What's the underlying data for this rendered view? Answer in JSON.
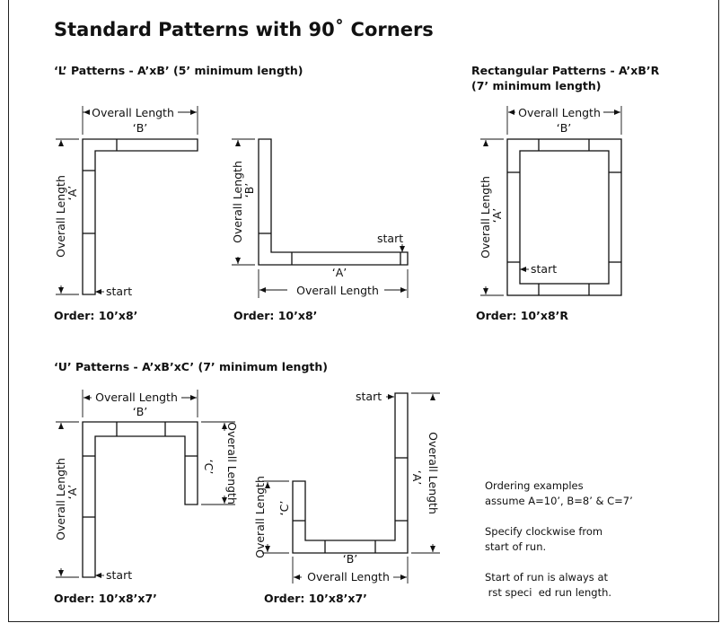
{
  "title": "Standard Patterns with 90˚ Corners",
  "sections": {
    "l_patterns": "‘L’ Patterns - A’xB’ (5’ minimum length)",
    "rect_patterns_line1": "Rectangular Patterns - A’xB’R",
    "rect_patterns_line2": "(7’ minimum length)",
    "u_patterns": "‘U’ Patterns - A’xB’xC’ (7’ minimum length)"
  },
  "labels": {
    "overall_length": "Overall Length",
    "a": "‘A’",
    "b": "‘B’",
    "c": "‘C’",
    "start": "start"
  },
  "orders": {
    "l1": "Order: 10’x8’",
    "l2": "Order: 10’x8’",
    "rect": "Order: 10’x8’R",
    "u1": "Order: 10’x8’x7’",
    "u2": "Order: 10’x8’x7’"
  },
  "notes": {
    "n1": "Ordering examples",
    "n2": "assume A=10’, B=8’ & C=7’",
    "n3": "Specify clockwise from",
    "n4": "start of run.",
    "n5": "Start of run is always at",
    "n6": " rst speci  ed run length."
  }
}
